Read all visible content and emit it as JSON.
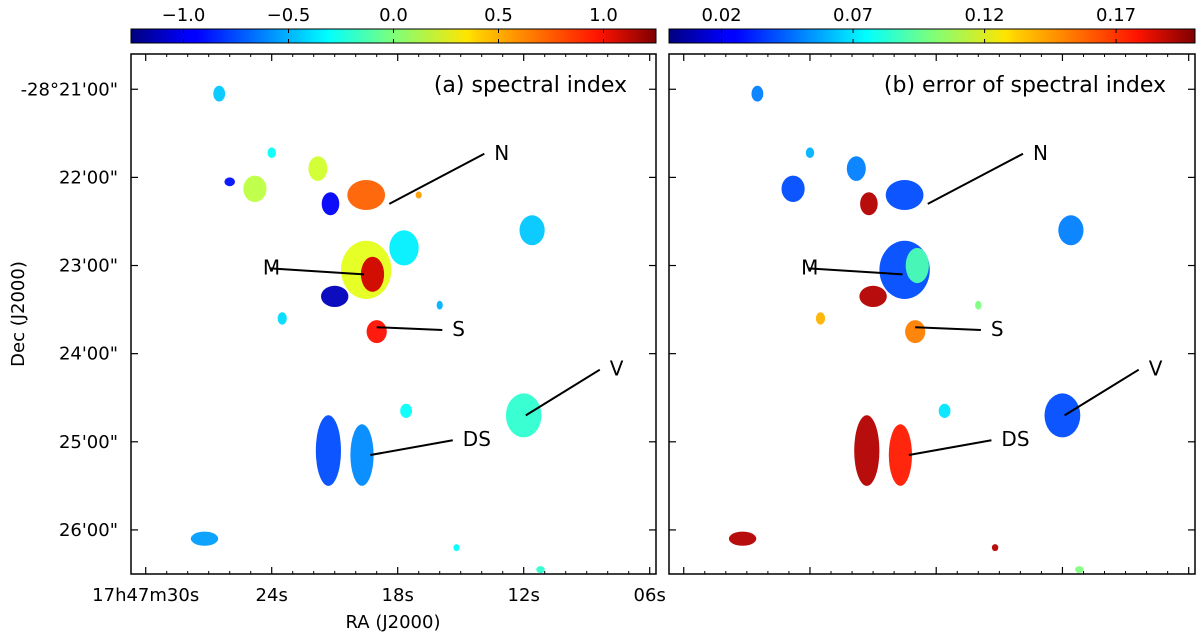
{
  "chart_data": [
    {
      "type": "heatmap",
      "panel_label": "(a) spectral index",
      "colorbar": {
        "colormap": "jet",
        "range": [
          -1.25,
          1.25
        ],
        "ticks": [
          -1.0,
          -0.5,
          0.0,
          0.5,
          1.0
        ],
        "tick_labels": [
          "−1.0",
          "−0.5",
          "0.0",
          "0.5",
          "1.0"
        ]
      },
      "xlabel": "RA (J2000)",
      "ylabel": "Dec (J2000)",
      "xlim_s": [
        30.7,
        5.7
      ],
      "ylim_arcmin": [
        26.5,
        20.6
      ],
      "x_ticks": [
        {
          "s": 30,
          "label": "17h47m30s"
        },
        {
          "s": 24,
          "label": "24s"
        },
        {
          "s": 18,
          "label": "18s"
        },
        {
          "s": 12,
          "label": "12s"
        },
        {
          "s": 6,
          "label": "06s"
        }
      ],
      "y_ticks": [
        {
          "arcmin": 21,
          "label": "-28°21'00\""
        },
        {
          "arcmin": 22,
          "label": "22'00\""
        },
        {
          "arcmin": 23,
          "label": "23'00\""
        },
        {
          "arcmin": 24,
          "label": "24'00\""
        },
        {
          "arcmin": 25,
          "label": "25'00\""
        },
        {
          "arcmin": 26,
          "label": "26'00\""
        }
      ],
      "sources": [
        {
          "ra_s": 26.5,
          "dec_arcmin": 21.05,
          "r_ra": 0.28,
          "r_dec": 0.09,
          "value": -0.45
        },
        {
          "ra_s": 24.8,
          "dec_arcmin": 22.13,
          "r_ra": 0.55,
          "r_dec": 0.15,
          "value": 0.15
        },
        {
          "ra_s": 24.0,
          "dec_arcmin": 21.72,
          "r_ra": 0.2,
          "r_dec": 0.06,
          "value": -0.3
        },
        {
          "ra_s": 26.0,
          "dec_arcmin": 22.05,
          "r_ra": 0.25,
          "r_dec": 0.05,
          "value": -0.9
        },
        {
          "ra_s": 21.8,
          "dec_arcmin": 21.9,
          "r_ra": 0.45,
          "r_dec": 0.14,
          "value": 0.2
        },
        {
          "ra_s": 19.5,
          "dec_arcmin": 22.2,
          "r_ra": 0.9,
          "r_dec": 0.17,
          "value": 0.7
        },
        {
          "ra_s": 21.2,
          "dec_arcmin": 22.3,
          "r_ra": 0.42,
          "r_dec": 0.13,
          "value": -0.95
        },
        {
          "ra_s": 17.0,
          "dec_arcmin": 22.2,
          "r_ra": 0.15,
          "r_dec": 0.04,
          "value": 0.55
        },
        {
          "ra_s": 19.5,
          "dec_arcmin": 23.05,
          "r_ra": 1.2,
          "r_dec": 0.33,
          "value": 0.25
        },
        {
          "ra_s": 19.2,
          "dec_arcmin": 23.1,
          "r_ra": 0.55,
          "r_dec": 0.2,
          "value": 1.05
        },
        {
          "ra_s": 17.7,
          "dec_arcmin": 22.8,
          "r_ra": 0.7,
          "r_dec": 0.2,
          "value": -0.35
        },
        {
          "ra_s": 21.0,
          "dec_arcmin": 23.35,
          "r_ra": 0.65,
          "r_dec": 0.12,
          "value": -1.1
        },
        {
          "ra_s": 19.0,
          "dec_arcmin": 23.75,
          "r_ra": 0.48,
          "r_dec": 0.13,
          "value": 0.9
        },
        {
          "ra_s": 23.5,
          "dec_arcmin": 23.6,
          "r_ra": 0.22,
          "r_dec": 0.07,
          "value": -0.4
        },
        {
          "ra_s": 16.0,
          "dec_arcmin": 23.45,
          "r_ra": 0.15,
          "r_dec": 0.05,
          "value": -0.5
        },
        {
          "ra_s": 11.6,
          "dec_arcmin": 22.6,
          "r_ra": 0.6,
          "r_dec": 0.17,
          "value": -0.45
        },
        {
          "ra_s": 12.0,
          "dec_arcmin": 24.7,
          "r_ra": 0.85,
          "r_dec": 0.25,
          "value": -0.2
        },
        {
          "ra_s": 17.6,
          "dec_arcmin": 24.65,
          "r_ra": 0.28,
          "r_dec": 0.08,
          "value": -0.3
        },
        {
          "ra_s": 21.3,
          "dec_arcmin": 25.1,
          "r_ra": 0.6,
          "r_dec": 0.4,
          "value": -0.75
        },
        {
          "ra_s": 19.7,
          "dec_arcmin": 25.15,
          "r_ra": 0.55,
          "r_dec": 0.35,
          "value": -0.6
        },
        {
          "ra_s": 27.2,
          "dec_arcmin": 26.1,
          "r_ra": 0.65,
          "r_dec": 0.08,
          "value": -0.55
        },
        {
          "ra_s": 11.2,
          "dec_arcmin": 26.45,
          "r_ra": 0.2,
          "r_dec": 0.04,
          "value": -0.2
        },
        {
          "ra_s": 15.2,
          "dec_arcmin": 26.2,
          "r_ra": 0.15,
          "r_dec": 0.04,
          "value": -0.3
        }
      ],
      "annotations": [
        {
          "text": "N",
          "ra_s": 13.4,
          "dec_arcmin": 21.8,
          "point_ra_s": 18.4,
          "point_dec_arcmin": 22.3
        },
        {
          "text": "M",
          "ra_s": 23.6,
          "dec_arcmin": 23.1,
          "point_ra_s": 19.6,
          "point_dec_arcmin": 23.1
        },
        {
          "text": "S",
          "ra_s": 15.4,
          "dec_arcmin": 23.8,
          "point_ra_s": 19.0,
          "point_dec_arcmin": 23.7
        },
        {
          "text": "V",
          "ra_s": 7.9,
          "dec_arcmin": 24.25,
          "point_ra_s": 11.9,
          "point_dec_arcmin": 24.7
        },
        {
          "text": "DS",
          "ra_s": 14.9,
          "dec_arcmin": 25.05,
          "point_ra_s": 19.3,
          "point_dec_arcmin": 25.15
        }
      ]
    },
    {
      "type": "heatmap",
      "panel_label": "(b) error of spectral index",
      "colorbar": {
        "colormap": "jet",
        "range": [
          0.0,
          0.2
        ],
        "ticks": [
          0.02,
          0.07,
          0.12,
          0.17
        ],
        "tick_labels": [
          "0.02",
          "0.07",
          "0.12",
          "0.17"
        ]
      },
      "xlim_s": [
        30.7,
        5.7
      ],
      "ylim_arcmin": [
        26.5,
        20.6
      ],
      "x_tick_values": [
        30,
        24,
        18,
        12,
        6
      ],
      "y_tick_values": [
        21,
        22,
        23,
        24,
        25,
        26
      ],
      "sources": [
        {
          "ra_s": 26.5,
          "dec_arcmin": 21.05,
          "r_ra": 0.28,
          "r_dec": 0.09,
          "value": 0.05
        },
        {
          "ra_s": 24.8,
          "dec_arcmin": 22.13,
          "r_ra": 0.55,
          "r_dec": 0.15,
          "value": 0.04
        },
        {
          "ra_s": 24.0,
          "dec_arcmin": 21.72,
          "r_ra": 0.2,
          "r_dec": 0.06,
          "value": 0.06
        },
        {
          "ra_s": 21.8,
          "dec_arcmin": 21.9,
          "r_ra": 0.45,
          "r_dec": 0.14,
          "value": 0.05
        },
        {
          "ra_s": 19.5,
          "dec_arcmin": 22.2,
          "r_ra": 0.9,
          "r_dec": 0.17,
          "value": 0.04
        },
        {
          "ra_s": 21.2,
          "dec_arcmin": 22.3,
          "r_ra": 0.42,
          "r_dec": 0.13,
          "value": 0.19
        },
        {
          "ra_s": 19.5,
          "dec_arcmin": 23.05,
          "r_ra": 1.2,
          "r_dec": 0.33,
          "value": 0.04
        },
        {
          "ra_s": 18.9,
          "dec_arcmin": 23.0,
          "r_ra": 0.55,
          "r_dec": 0.2,
          "value": 0.09
        },
        {
          "ra_s": 21.0,
          "dec_arcmin": 23.35,
          "r_ra": 0.65,
          "r_dec": 0.12,
          "value": 0.19
        },
        {
          "ra_s": 19.0,
          "dec_arcmin": 23.75,
          "r_ra": 0.48,
          "r_dec": 0.13,
          "value": 0.15
        },
        {
          "ra_s": 23.5,
          "dec_arcmin": 23.6,
          "r_ra": 0.22,
          "r_dec": 0.07,
          "value": 0.14
        },
        {
          "ra_s": 16.0,
          "dec_arcmin": 23.45,
          "r_ra": 0.15,
          "r_dec": 0.05,
          "value": 0.1
        },
        {
          "ra_s": 11.6,
          "dec_arcmin": 22.6,
          "r_ra": 0.6,
          "r_dec": 0.17,
          "value": 0.05
        },
        {
          "ra_s": 12.0,
          "dec_arcmin": 24.7,
          "r_ra": 0.85,
          "r_dec": 0.25,
          "value": 0.04
        },
        {
          "ra_s": 17.6,
          "dec_arcmin": 24.65,
          "r_ra": 0.28,
          "r_dec": 0.08,
          "value": 0.07
        },
        {
          "ra_s": 21.3,
          "dec_arcmin": 25.1,
          "r_ra": 0.6,
          "r_dec": 0.4,
          "value": 0.19
        },
        {
          "ra_s": 19.7,
          "dec_arcmin": 25.15,
          "r_ra": 0.55,
          "r_dec": 0.35,
          "value": 0.17
        },
        {
          "ra_s": 27.2,
          "dec_arcmin": 26.1,
          "r_ra": 0.65,
          "r_dec": 0.08,
          "value": 0.19
        },
        {
          "ra_s": 11.2,
          "dec_arcmin": 26.45,
          "r_ra": 0.2,
          "r_dec": 0.04,
          "value": 0.1
        },
        {
          "ra_s": 15.2,
          "dec_arcmin": 26.2,
          "r_ra": 0.15,
          "r_dec": 0.04,
          "value": 0.19
        }
      ],
      "annotations": [
        {
          "text": "N",
          "ra_s": 13.4,
          "dec_arcmin": 21.8,
          "point_ra_s": 18.4,
          "point_dec_arcmin": 22.3
        },
        {
          "text": "M",
          "ra_s": 23.6,
          "dec_arcmin": 23.1,
          "point_ra_s": 19.6,
          "point_dec_arcmin": 23.1
        },
        {
          "text": "S",
          "ra_s": 15.4,
          "dec_arcmin": 23.8,
          "point_ra_s": 19.0,
          "point_dec_arcmin": 23.7
        },
        {
          "text": "V",
          "ra_s": 7.9,
          "dec_arcmin": 24.25,
          "point_ra_s": 11.9,
          "point_dec_arcmin": 24.7
        },
        {
          "text": "DS",
          "ra_s": 14.9,
          "dec_arcmin": 25.05,
          "point_ra_s": 19.3,
          "point_dec_arcmin": 25.15
        }
      ]
    }
  ]
}
